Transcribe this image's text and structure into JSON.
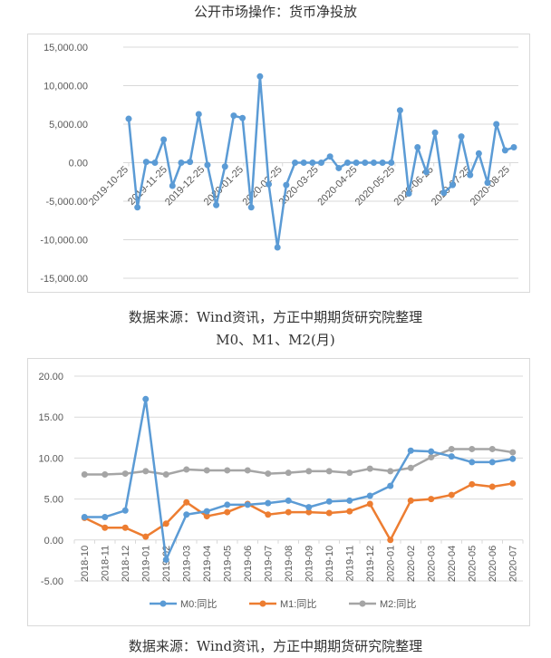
{
  "chart_data": [
    {
      "type": "line",
      "title": "公开市场操作：货币净投放",
      "caption": "数据来源：Wind资讯，方正中期期货研究院整理",
      "start_date": "2019-10-25",
      "interval_days": 7,
      "x_tick_labels": [
        "2019-10-25",
        "2019-11-25",
        "2019-12-25",
        "2020-01-25",
        "2020-02-25",
        "2020-03-25",
        "2020-04-25",
        "2020-05-25",
        "2020-06-25",
        "2020-07-25",
        "2020-08-25"
      ],
      "y_tick_labels": [
        "15,000.00",
        "10,000.00",
        "5,000.00",
        "0.00",
        "-5,000.00",
        "-10,000.00",
        "-15,000.00"
      ],
      "ylim": [
        -15000,
        15000
      ],
      "series": [
        {
          "name": "货币净投放",
          "color": "#5b9bd5",
          "values": [
            5700,
            -5800,
            100,
            0,
            3000,
            -3000,
            0,
            100,
            6300,
            -300,
            -5500,
            -500,
            6100,
            5800,
            -5800,
            11200,
            -2800,
            -11000,
            -2900,
            0,
            0,
            0,
            0,
            800,
            -700,
            0,
            0,
            0,
            0,
            0,
            0,
            6800,
            -4000,
            2000,
            -1200,
            3900,
            -3900,
            -2900,
            3400,
            -1600,
            1200,
            -2600,
            5000,
            1600,
            2000
          ]
        }
      ],
      "grid": true
    },
    {
      "type": "line",
      "title": "M0、M1、M2(月)",
      "caption": "数据来源：Wind资讯，方正中期期货研究院整理",
      "categories": [
        "2018-10",
        "2018-11",
        "2018-12",
        "2019-01",
        "2019-02",
        "2019-03",
        "2019-04",
        "2019-05",
        "2019-06",
        "2019-07",
        "2019-08",
        "2019-09",
        "2019-10",
        "2019-11",
        "2019-12",
        "2020-01",
        "2020-02",
        "2020-03",
        "2020-04",
        "2020-05",
        "2020-06",
        "2020-07"
      ],
      "y_tick_labels": [
        "20.00",
        "15.00",
        "10.00",
        "5.00",
        "0.00",
        "-5.00"
      ],
      "ylim": [
        -5,
        20
      ],
      "legend_position": "bottom",
      "series": [
        {
          "name": "M0:同比",
          "color": "#5b9bd5",
          "values": [
            2.8,
            2.8,
            3.6,
            17.2,
            -2.4,
            3.1,
            3.5,
            4.3,
            4.3,
            4.5,
            4.8,
            4.0,
            4.7,
            4.8,
            5.4,
            6.6,
            10.9,
            10.8,
            10.2,
            9.5,
            9.5,
            9.9
          ]
        },
        {
          "name": "M1:同比",
          "color": "#ed7d31",
          "values": [
            2.7,
            1.5,
            1.5,
            0.4,
            2.0,
            4.6,
            2.9,
            3.4,
            4.4,
            3.1,
            3.4,
            3.4,
            3.3,
            3.5,
            4.4,
            0.0,
            4.8,
            5.0,
            5.5,
            6.8,
            6.5,
            6.9
          ]
        },
        {
          "name": "M2:同比",
          "color": "#a5a5a5",
          "values": [
            8.0,
            8.0,
            8.1,
            8.4,
            8.0,
            8.6,
            8.5,
            8.5,
            8.5,
            8.1,
            8.2,
            8.4,
            8.4,
            8.2,
            8.7,
            8.4,
            8.8,
            10.1,
            11.1,
            11.1,
            11.1,
            10.7
          ]
        }
      ],
      "grid": true
    }
  ]
}
